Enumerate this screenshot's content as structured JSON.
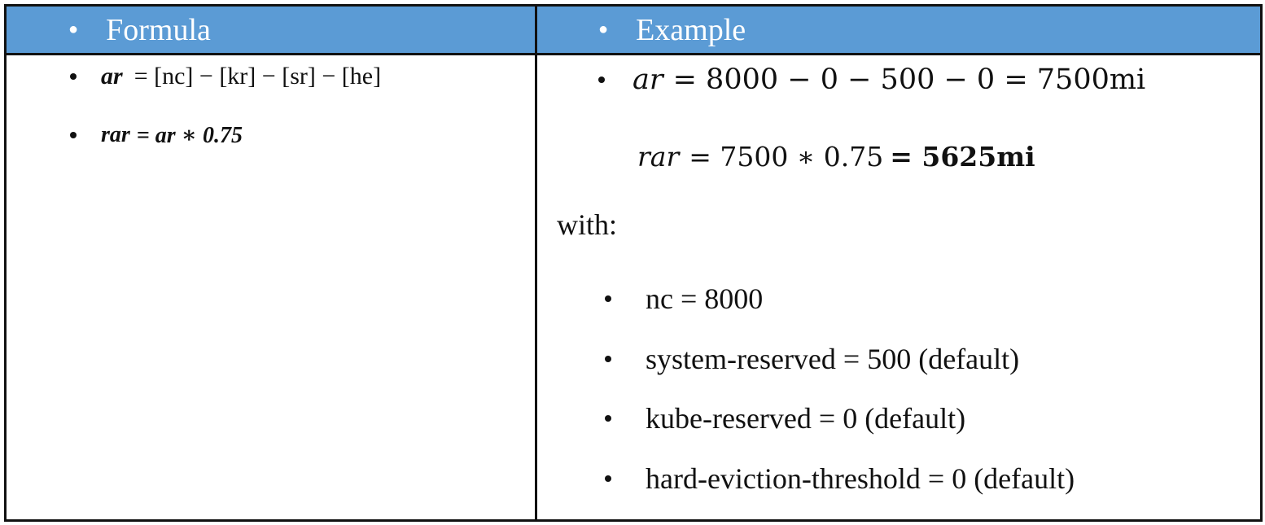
{
  "header": {
    "formula_label": "Formula",
    "example_label": "Example"
  },
  "formula": {
    "ar_lhs": "ar",
    "ar_rhs": "= [nc] − [kr] − [sr] − [he]",
    "rar_lhs": "rar",
    "rar_rhs": "= ar ∗ 0.75"
  },
  "example": {
    "ar_lhs": "ar",
    "ar_rhs": "= 8000 − 0 − 500 − 0 = 7500mi",
    "rar_lhs": "rar",
    "rar_mid": "= 7500 ∗ 0.75 ",
    "rar_result": "= 5625mi",
    "with_label": "with:",
    "params": [
      "nc = 8000",
      "system-reserved = 500 (default)",
      "kube-reserved = 0 (default)",
      "hard-eviction-threshold = 0 (default)"
    ]
  }
}
